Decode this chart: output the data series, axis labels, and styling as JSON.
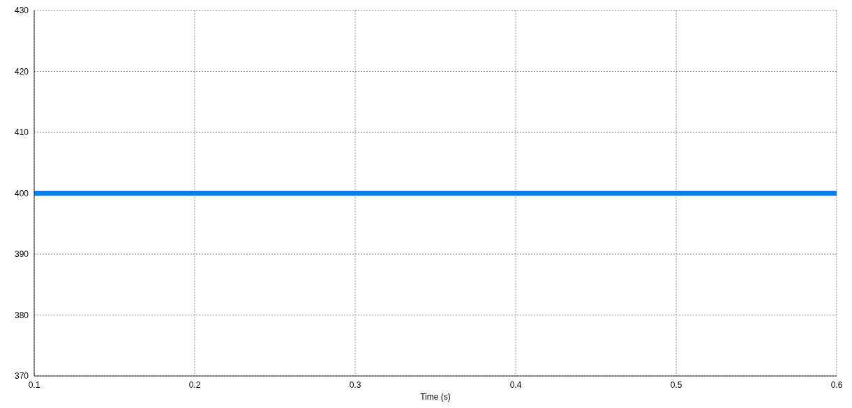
{
  "chart_data": {
    "type": "line",
    "xlabel": "Time (s)",
    "x": [
      0.1,
      0.6
    ],
    "series": [
      {
        "color": "#0080ff",
        "values": [
          400,
          400
        ]
      }
    ],
    "xlim": [
      0.1,
      0.6
    ],
    "xticks": [
      0.1,
      0.2,
      0.3,
      0.4,
      0.5,
      0.6
    ],
    "ylim": [
      370,
      430
    ],
    "yticks": [
      370,
      380,
      390,
      400,
      410,
      420,
      430
    ],
    "grid": true,
    "marker": "none",
    "line_style": "solid"
  }
}
